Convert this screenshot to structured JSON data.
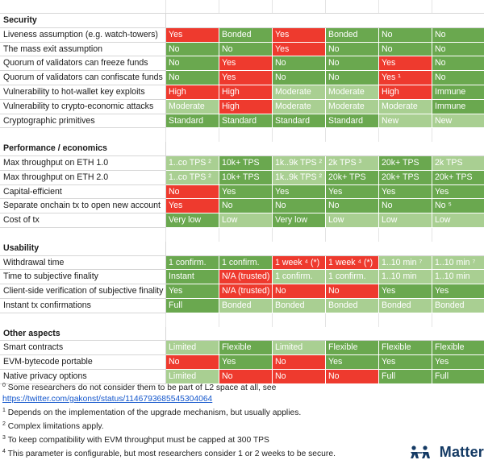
{
  "table": {
    "sections": [
      {
        "title": "Security",
        "rows": [
          {
            "label": "Liveness assumption (e.g. watch-towers)",
            "cells": [
              {
                "v": "Yes",
                "c": "r"
              },
              {
                "v": "Bonded",
                "c": "g"
              },
              {
                "v": "Yes",
                "c": "r"
              },
              {
                "v": "Bonded",
                "c": "g"
              },
              {
                "v": "No",
                "c": "g"
              },
              {
                "v": "No",
                "c": "g"
              }
            ]
          },
          {
            "label": "The mass exit assumption",
            "cells": [
              {
                "v": "No",
                "c": "g"
              },
              {
                "v": "No",
                "c": "g"
              },
              {
                "v": "Yes",
                "c": "r"
              },
              {
                "v": "No",
                "c": "g"
              },
              {
                "v": "No",
                "c": "g"
              },
              {
                "v": "No",
                "c": "g"
              }
            ]
          },
          {
            "label": "Quorum of validators can freeze funds",
            "cells": [
              {
                "v": "No",
                "c": "g"
              },
              {
                "v": "Yes",
                "c": "r"
              },
              {
                "v": "No",
                "c": "g"
              },
              {
                "v": "No",
                "c": "g"
              },
              {
                "v": "Yes",
                "c": "r"
              },
              {
                "v": "No",
                "c": "g"
              }
            ]
          },
          {
            "label": "Quorum of validators can confiscate funds",
            "cells": [
              {
                "v": "No",
                "c": "g"
              },
              {
                "v": "Yes",
                "c": "r"
              },
              {
                "v": "No",
                "c": "g"
              },
              {
                "v": "No",
                "c": "g"
              },
              {
                "v": "Yes ¹",
                "c": "r"
              },
              {
                "v": "No",
                "c": "g"
              }
            ]
          },
          {
            "label": "Vulnerability to hot-wallet key exploits",
            "cells": [
              {
                "v": "High",
                "c": "r"
              },
              {
                "v": "High",
                "c": "r"
              },
              {
                "v": "Moderate",
                "c": "l"
              },
              {
                "v": "Moderate",
                "c": "l"
              },
              {
                "v": "High",
                "c": "r"
              },
              {
                "v": "Immune",
                "c": "g"
              }
            ]
          },
          {
            "label": "Vulnerability to crypto-economic attacks",
            "cells": [
              {
                "v": "Moderate",
                "c": "l"
              },
              {
                "v": "High",
                "c": "r"
              },
              {
                "v": "Moderate",
                "c": "l"
              },
              {
                "v": "Moderate",
                "c": "l"
              },
              {
                "v": "Moderate",
                "c": "l"
              },
              {
                "v": "Immune",
                "c": "g"
              }
            ]
          },
          {
            "label": "Cryptographic primitives",
            "cells": [
              {
                "v": "Standard",
                "c": "g"
              },
              {
                "v": "Standard",
                "c": "g"
              },
              {
                "v": "Standard",
                "c": "g"
              },
              {
                "v": "Standard",
                "c": "g"
              },
              {
                "v": "New",
                "c": "l"
              },
              {
                "v": "New",
                "c": "l"
              }
            ]
          }
        ]
      },
      {
        "title": "Performance / economics",
        "rows": [
          {
            "label": "Max throughput on ETH 1.0",
            "cells": [
              {
                "v": "1..co TPS ²",
                "c": "l"
              },
              {
                "v": "10k+ TPS",
                "c": "g"
              },
              {
                "v": "1k..9k TPS ²",
                "c": "l"
              },
              {
                "v": "2k TPS ³",
                "c": "l"
              },
              {
                "v": "20k+ TPS",
                "c": "g"
              },
              {
                "v": "2k TPS",
                "c": "l"
              }
            ]
          },
          {
            "label": "Max throughput on ETH 2.0",
            "cells": [
              {
                "v": "1..co TPS ²",
                "c": "l"
              },
              {
                "v": "10k+ TPS",
                "c": "g"
              },
              {
                "v": "1k..9k TPS ²",
                "c": "l"
              },
              {
                "v": "20k+ TPS",
                "c": "g"
              },
              {
                "v": "20k+ TPS",
                "c": "g"
              },
              {
                "v": "20k+ TPS",
                "c": "g"
              }
            ]
          },
          {
            "label": "Capital-efficient",
            "cells": [
              {
                "v": "No",
                "c": "r"
              },
              {
                "v": "Yes",
                "c": "g"
              },
              {
                "v": "Yes",
                "c": "g"
              },
              {
                "v": "Yes",
                "c": "g"
              },
              {
                "v": "Yes",
                "c": "g"
              },
              {
                "v": "Yes",
                "c": "g"
              }
            ]
          },
          {
            "label": "Separate onchain tx to open new account",
            "cells": [
              {
                "v": "Yes",
                "c": "r"
              },
              {
                "v": "No",
                "c": "g"
              },
              {
                "v": "No",
                "c": "g"
              },
              {
                "v": "No",
                "c": "g"
              },
              {
                "v": "No",
                "c": "g"
              },
              {
                "v": "No ⁵",
                "c": "g"
              }
            ]
          },
          {
            "label": "Cost of tx",
            "cells": [
              {
                "v": "Very low",
                "c": "g"
              },
              {
                "v": "Low",
                "c": "l"
              },
              {
                "v": "Very low",
                "c": "g"
              },
              {
                "v": "Low",
                "c": "l"
              },
              {
                "v": "Low",
                "c": "l"
              },
              {
                "v": "Low",
                "c": "l"
              }
            ]
          }
        ]
      },
      {
        "title": "Usability",
        "rows": [
          {
            "label": "Withdrawal time",
            "cells": [
              {
                "v": "1 confirm.",
                "c": "g"
              },
              {
                "v": "1 confirm.",
                "c": "g"
              },
              {
                "v": "1 week ⁴ (*)",
                "c": "r"
              },
              {
                "v": "1 week ⁴ (*)",
                "c": "r"
              },
              {
                "v": "1..10 min ⁷",
                "c": "l"
              },
              {
                "v": "1..10 min ⁷",
                "c": "l"
              }
            ]
          },
          {
            "label": "Time to subjective finality",
            "cells": [
              {
                "v": "Instant",
                "c": "g"
              },
              {
                "v": "N/A (trusted)",
                "c": "r"
              },
              {
                "v": "1 confirm.",
                "c": "l"
              },
              {
                "v": "1 confirm.",
                "c": "l"
              },
              {
                "v": "1..10 min",
                "c": "l"
              },
              {
                "v": "1..10 min",
                "c": "l"
              }
            ]
          },
          {
            "label": "Client-side verification of subjective finality",
            "cells": [
              {
                "v": "Yes",
                "c": "g"
              },
              {
                "v": "N/A (trusted)",
                "c": "r"
              },
              {
                "v": "No",
                "c": "r"
              },
              {
                "v": "No",
                "c": "r"
              },
              {
                "v": "Yes",
                "c": "g"
              },
              {
                "v": "Yes",
                "c": "g"
              }
            ]
          },
          {
            "label": "Instant tx confirmations",
            "cells": [
              {
                "v": "Full",
                "c": "g"
              },
              {
                "v": "Bonded",
                "c": "l"
              },
              {
                "v": "Bonded",
                "c": "l"
              },
              {
                "v": "Bonded",
                "c": "l"
              },
              {
                "v": "Bonded",
                "c": "l"
              },
              {
                "v": "Bonded",
                "c": "l"
              }
            ]
          }
        ]
      },
      {
        "title": "Other aspects",
        "rows": [
          {
            "label": "Smart contracts",
            "cells": [
              {
                "v": "Limited",
                "c": "l"
              },
              {
                "v": "Flexible",
                "c": "g"
              },
              {
                "v": "Limited",
                "c": "l"
              },
              {
                "v": "Flexible",
                "c": "g"
              },
              {
                "v": "Flexible",
                "c": "g"
              },
              {
                "v": "Flexible",
                "c": "g"
              }
            ]
          },
          {
            "label": "EVM-bytecode portable",
            "cells": [
              {
                "v": "No",
                "c": "r"
              },
              {
                "v": "Yes",
                "c": "g"
              },
              {
                "v": "No",
                "c": "r"
              },
              {
                "v": "Yes",
                "c": "g"
              },
              {
                "v": "Yes",
                "c": "g"
              },
              {
                "v": "Yes",
                "c": "g"
              }
            ]
          },
          {
            "label": "Native privacy options",
            "cells": [
              {
                "v": "Limited",
                "c": "l"
              },
              {
                "v": "No",
                "c": "r"
              },
              {
                "v": "No",
                "c": "r"
              },
              {
                "v": "No",
                "c": "r"
              },
              {
                "v": "Full",
                "c": "g"
              },
              {
                "v": "Full",
                "c": "g"
              }
            ]
          }
        ]
      }
    ]
  },
  "footnotes": [
    {
      "mark": "0",
      "text": " Some researchers do not consider them to be part of L2 space at all, see"
    },
    {
      "mark": "",
      "text": "https://twitter.com/gakonst/status/1146793685545304064",
      "link": true
    },
    {
      "mark": "1",
      "text": " Depends on the implementation of the upgrade mechanism, but usually applies."
    },
    {
      "mark": "2",
      "text": " Complex limitations apply."
    },
    {
      "mark": "3",
      "text": " To keep compatibility with EVM throughput must be capped at 300 TPS"
    },
    {
      "mark": "4",
      "text": " This parameter is configurable, but most researchers consider 1 or 2 weeks to be secure."
    }
  ],
  "logo": {
    "text": "Matter",
    "color": "#143a64"
  },
  "colors": {
    "green": "#6aa84f",
    "light_green": "#a9cf92",
    "red": "#ee3a2e"
  }
}
